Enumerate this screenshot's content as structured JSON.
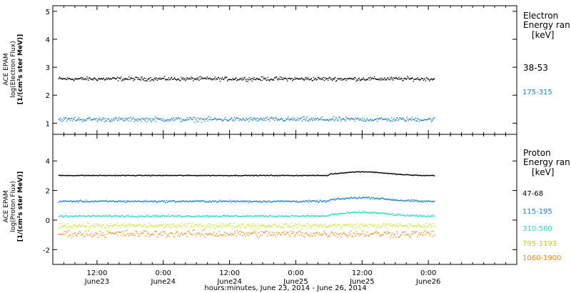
{
  "chart_data": [
    {
      "type": "scatter",
      "ylabel": [
        "ACE EPAM",
        "log(Electron Flux)",
        "[1/(cm²s ster MeV)]"
      ],
      "ylim": [
        0.6,
        5.2
      ],
      "yticks": [
        1,
        2,
        3,
        4,
        5
      ],
      "legend_title": [
        "Electron",
        "Energy ran"
      ],
      "legend_unit": "[keV]",
      "series": [
        {
          "name": "38-53",
          "color": "#000000",
          "level": 2.6,
          "noise": 0.1
        },
        {
          "name": "175-315",
          "color": "#1a7fd6",
          "level": 1.15,
          "noise": 0.12
        }
      ]
    },
    {
      "type": "scatter",
      "ylabel": [
        "ACE EPAM",
        "log(Proton Flux)",
        "[1/(cm²s ster MeV)]"
      ],
      "ylim": [
        -3,
        5.8
      ],
      "yticks": [
        -2,
        0,
        2,
        4
      ],
      "legend_title": [
        "Proton",
        "Energy ran"
      ],
      "legend_unit": "[keV]",
      "series": [
        {
          "name": "47-68",
          "color": "#000000",
          "level": 3.05,
          "noise": 0.04
        },
        {
          "name": "115-195",
          "color": "#1a7fd6",
          "level": 1.3,
          "noise": 0.1
        },
        {
          "name": "310-580",
          "color": "#2ad9c8",
          "level": 0.3,
          "noise": 0.1
        },
        {
          "name": "795-1193",
          "color": "#c7ea12",
          "level": -0.35,
          "noise": 0.25
        },
        {
          "name": "1060-1900",
          "color": "#f08a14",
          "level": -0.9,
          "noise": 0.35
        }
      ]
    }
  ],
  "x_axis": {
    "range_hours": [
      0,
      84
    ],
    "data_end_hours": 69,
    "ticks": [
      {
        "hour": 8,
        "label": "12:00",
        "label2": "June23"
      },
      {
        "hour": 20,
        "label": "0:00",
        "label2": "June24"
      },
      {
        "hour": 32,
        "label": "12:00",
        "label2": "June24"
      },
      {
        "hour": 44,
        "label": "0:00",
        "label2": "June25"
      },
      {
        "hour": 56,
        "label": "12:00",
        "label2": "June25"
      },
      {
        "hour": 68,
        "label": "0:00",
        "label2": "June26"
      }
    ],
    "title": "hours:minutes, June 23, 2014 - June 26, 2014"
  }
}
